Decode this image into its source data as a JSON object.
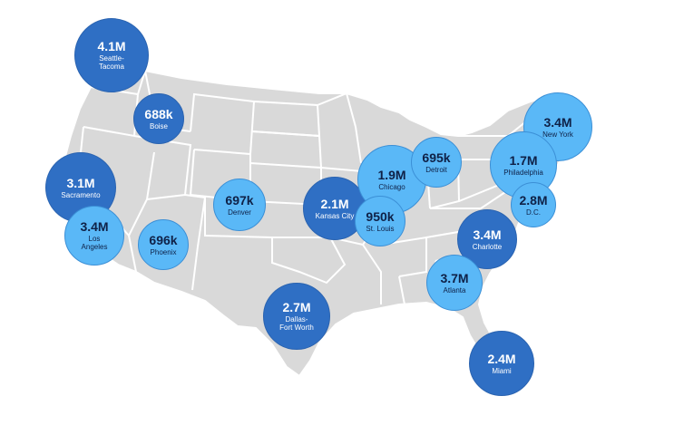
{
  "colors": {
    "land": "#d9d9d9",
    "border": "#ffffff",
    "dark_bubble": "#2f6fc4",
    "light_bubble": "#5ab8f7"
  },
  "markets": [
    {
      "value": "4.1M",
      "city": "Seattle-\nTacoma",
      "tone": "dark"
    },
    {
      "value": "688k",
      "city": "Boise",
      "tone": "dark"
    },
    {
      "value": "3.1M",
      "city": "Sacramento",
      "tone": "dark"
    },
    {
      "value": "3.4M",
      "city": "Los\nAngeles",
      "tone": "light"
    },
    {
      "value": "696k",
      "city": "Phoenix",
      "tone": "light"
    },
    {
      "value": "697k",
      "city": "Denver",
      "tone": "light"
    },
    {
      "value": "2.1M",
      "city": "Kansas City",
      "tone": "dark"
    },
    {
      "value": "1.9M",
      "city": "Chicago",
      "tone": "light"
    },
    {
      "value": "695k",
      "city": "Detroit",
      "tone": "light"
    },
    {
      "value": "950k",
      "city": "St. Louis",
      "tone": "light"
    },
    {
      "value": "3.4M",
      "city": "New York",
      "tone": "light"
    },
    {
      "value": "1.7M",
      "city": "Philadelphia",
      "tone": "light"
    },
    {
      "value": "2.8M",
      "city": "D.C.",
      "tone": "light"
    },
    {
      "value": "3.4M",
      "city": "Charlotte",
      "tone": "dark"
    },
    {
      "value": "3.7M",
      "city": "Atlanta",
      "tone": "light"
    },
    {
      "value": "2.7M",
      "city": "Dallas-\nFort Worth",
      "tone": "dark"
    },
    {
      "value": "2.4M",
      "city": "Miami",
      "tone": "dark"
    }
  ]
}
